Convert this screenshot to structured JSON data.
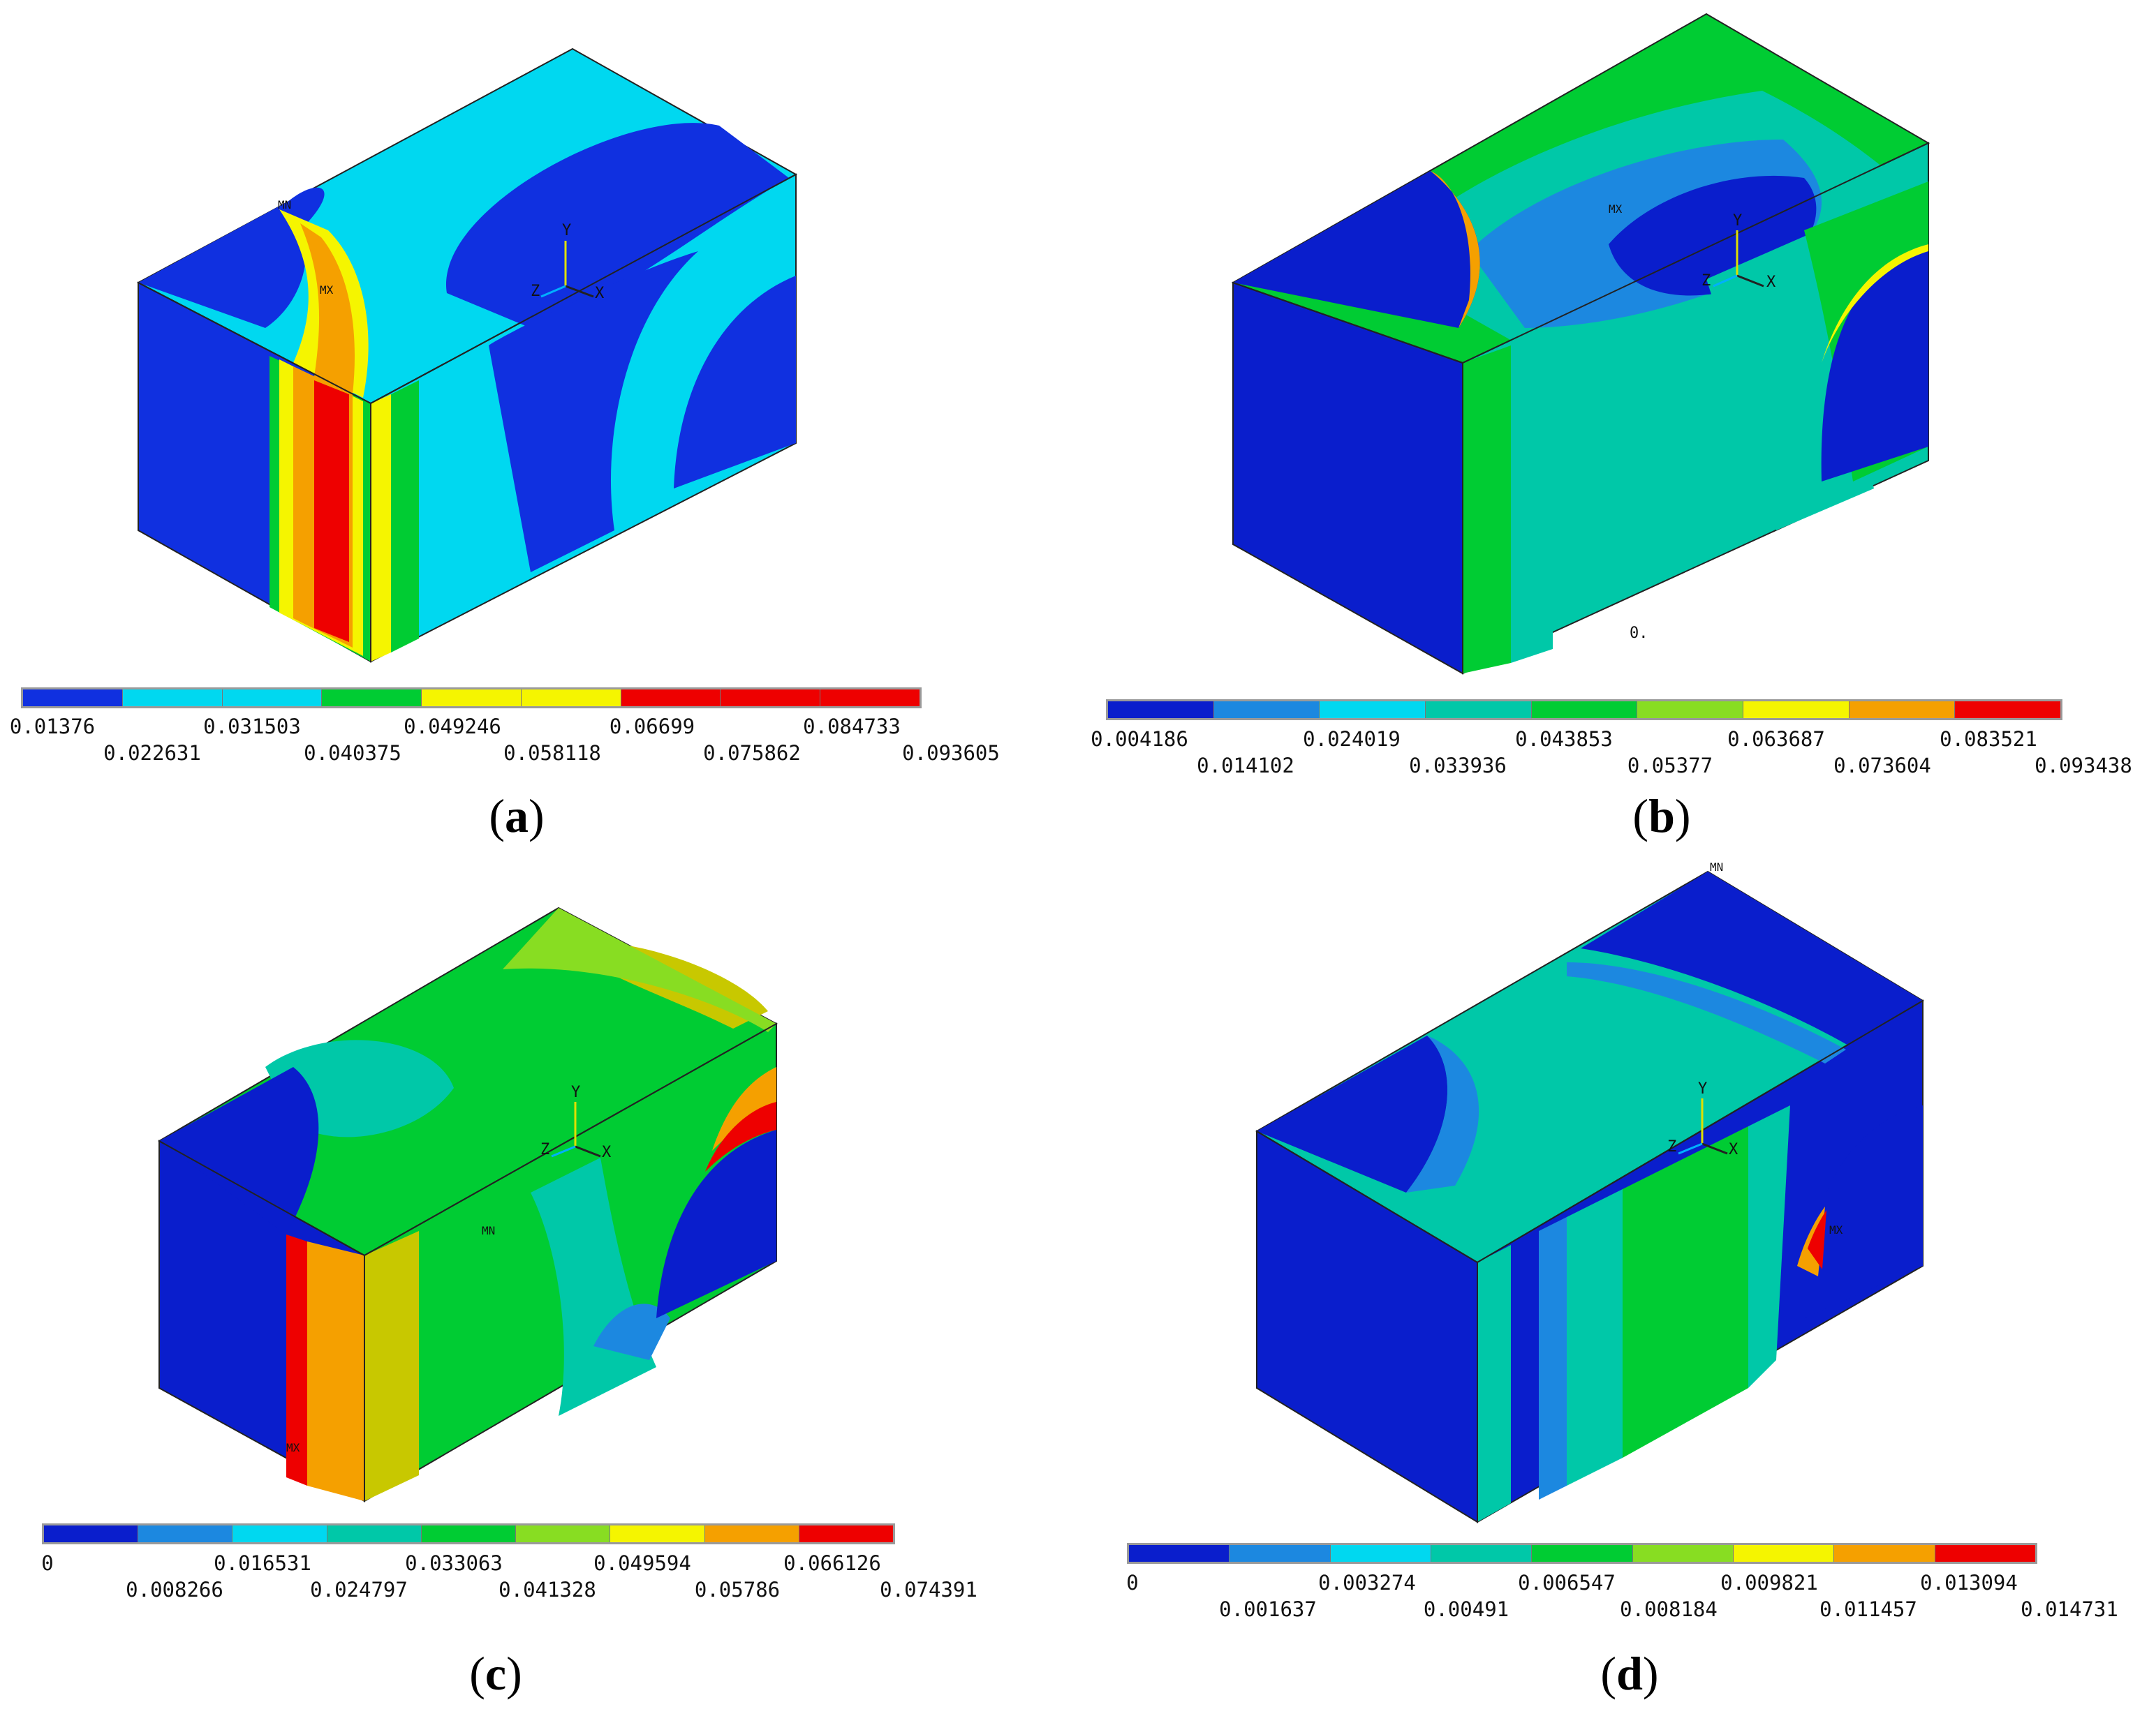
{
  "panels": [
    {
      "id": "a",
      "label_open": "(",
      "label_letter": "a",
      "label_close": ")",
      "legend_ticks": [
        "0.01376",
        "0.022631",
        "0.031503",
        "0.040375",
        "0.049246",
        "0.058118",
        "0.06699",
        "0.075862",
        "0.084733",
        "0.093605"
      ],
      "legend_colors": [
        "#1030e0",
        "#00d8f0",
        "#00d8f0",
        "#00cc33",
        "#f5f500",
        "#f5f500",
        "#ee0000",
        "#ee0000",
        "#ee0000"
      ],
      "marks": {
        "mn": "MN",
        "mx": "MX"
      },
      "axes": {
        "x": "X",
        "y": "Y",
        "z": "Z"
      },
      "extra_text": ""
    },
    {
      "id": "b",
      "label_open": "(",
      "label_letter": "b",
      "label_close": ")",
      "legend_ticks": [
        "0.004186",
        "0.014102",
        "0.024019",
        "0.033936",
        "0.043853",
        "0.05377",
        "0.063687",
        "0.073604",
        "0.083521",
        "0.093438"
      ],
      "legend_colors": [
        "#0a1ecc",
        "#1c88e0",
        "#00d8f0",
        "#00c8a8",
        "#00cc33",
        "#88dd22",
        "#f5f500",
        "#f5a000",
        "#ee0000"
      ],
      "marks": {
        "mn": "",
        "mx": "MX"
      },
      "axes": {
        "x": "X",
        "y": "Y",
        "z": "Z"
      },
      "extra_text": "0."
    },
    {
      "id": "c",
      "label_open": "(",
      "label_letter": "c",
      "label_close": ")",
      "legend_ticks": [
        "0",
        "0.008266",
        "0.016531",
        "0.024797",
        "0.033063",
        "0.041328",
        "0.049594",
        "0.05786",
        "0.066126",
        "0.074391"
      ],
      "legend_colors": [
        "#0a1ecc",
        "#1c88e0",
        "#00d8f0",
        "#00c8a8",
        "#00cc33",
        "#88dd22",
        "#f5f500",
        "#f5a000",
        "#ee0000"
      ],
      "marks": {
        "mn": "MN",
        "mx": "MX"
      },
      "axes": {
        "x": "X",
        "y": "Y",
        "z": "Z"
      },
      "extra_text": ""
    },
    {
      "id": "d",
      "label_open": "(",
      "label_letter": "d",
      "label_close": ")",
      "legend_ticks": [
        "0",
        "0.001637",
        "0.003274",
        "0.00491",
        "0.006547",
        "0.008184",
        "0.009821",
        "0.011457",
        "0.013094",
        "0.014731"
      ],
      "legend_colors": [
        "#0a1ecc",
        "#1c88e0",
        "#00d8f0",
        "#00c8a8",
        "#00cc33",
        "#88dd22",
        "#f5f500",
        "#f5a000",
        "#ee0000"
      ],
      "marks": {
        "mn": "MN",
        "mx": "MX"
      },
      "axes": {
        "x": "X",
        "y": "Y",
        "z": "Z"
      },
      "extra_text": ""
    }
  ]
}
